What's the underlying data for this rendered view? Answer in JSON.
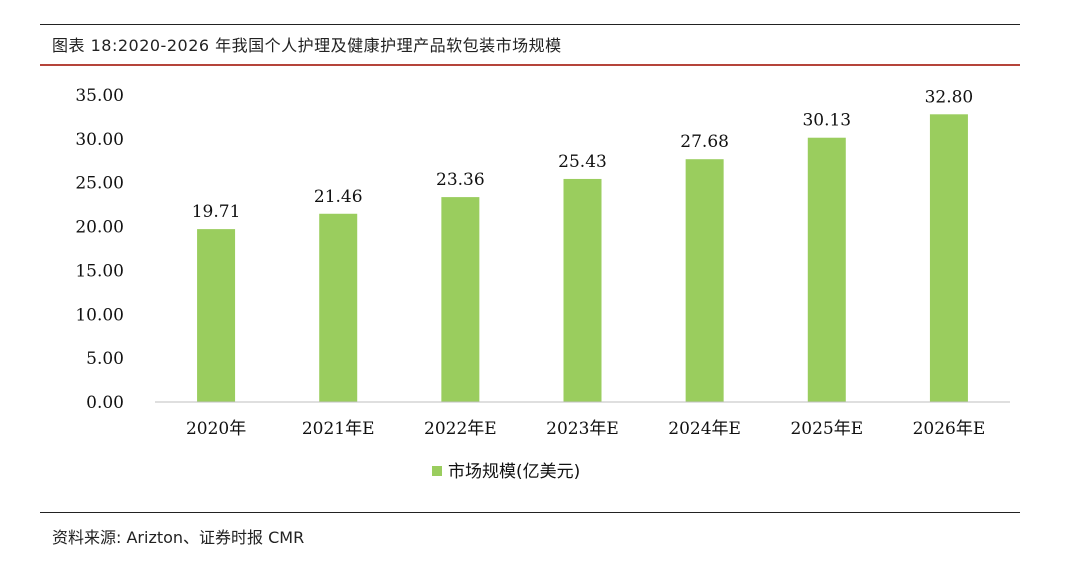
{
  "figure": {
    "title": "图表 18:2020-2026 年我国个人护理及健康护理产品软包装市场规模",
    "source": "资料来源: Arizton、证券时报 CMR"
  },
  "chart_data": {
    "type": "bar",
    "categories": [
      "2020年",
      "2021年E",
      "2022年E",
      "2023年E",
      "2024年E",
      "2025年E",
      "2026年E"
    ],
    "series": [
      {
        "name": "市场规模(亿美元)",
        "values": [
          19.71,
          21.46,
          23.36,
          25.43,
          27.68,
          30.13,
          32.8
        ],
        "color": "#9acd5e"
      }
    ],
    "data_labels": [
      "19.71",
      "21.46",
      "23.36",
      "25.43",
      "27.68",
      "30.13",
      "32.80"
    ],
    "y_ticks": [
      "0.00",
      "5.00",
      "10.00",
      "15.00",
      "20.00",
      "25.00",
      "30.00",
      "35.00"
    ],
    "ylim": [
      0,
      35
    ],
    "grid": false,
    "legend_position": "bottom-center"
  }
}
